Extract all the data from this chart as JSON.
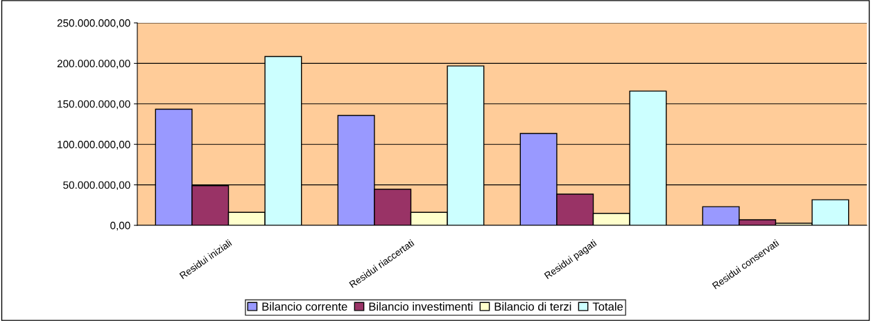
{
  "chart_data": {
    "type": "bar",
    "categories": [
      "Residui iniziali",
      "Residui riaccertati",
      "Residui pagati",
      "Residui conservati"
    ],
    "series": [
      {
        "name": "Bilancio corrente",
        "color": "#9999ff",
        "values": [
          143400000,
          135700000,
          113400000,
          23000000
        ]
      },
      {
        "name": "Bilancio investimenti",
        "color": "#993366",
        "values": [
          49000000,
          44500000,
          38500000,
          6800000
        ]
      },
      {
        "name": "Bilancio di terzi",
        "color": "#ffffcc",
        "values": [
          16000000,
          16000000,
          14800000,
          2600000
        ]
      },
      {
        "name": "Totale",
        "color": "#ccffff",
        "values": [
          208500000,
          196800000,
          165800000,
          31600000
        ]
      }
    ],
    "ylim": [
      0,
      250000000
    ],
    "yticks": [
      {
        "value": 0,
        "label": "0,00"
      },
      {
        "value": 50000000,
        "label": "50.000.000,00"
      },
      {
        "value": 100000000,
        "label": "100.000.000,00"
      },
      {
        "value": 150000000,
        "label": "150.000.000,00"
      },
      {
        "value": 200000000,
        "label": "200.000.000,00"
      },
      {
        "value": 250000000,
        "label": "250.000.000,00"
      }
    ],
    "grid": "y",
    "legend": "bottom"
  }
}
